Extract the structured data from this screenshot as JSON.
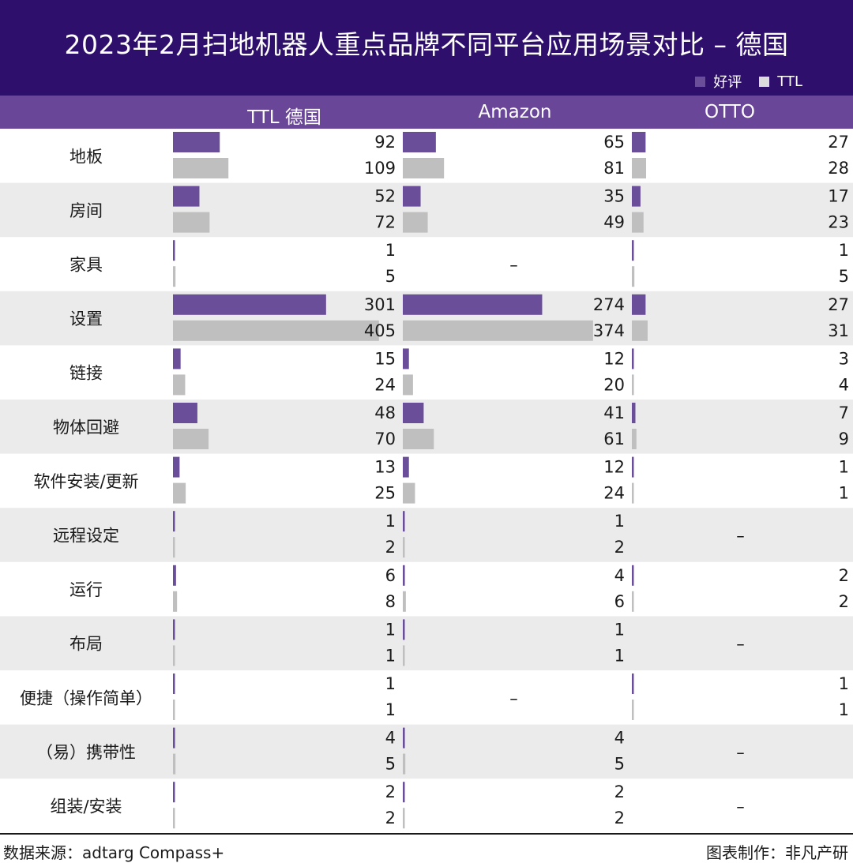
{
  "chart_data": {
    "type": "bar",
    "title": "2023年2月扫地机器人重点品牌不同平台应用场景对比 – 德国",
    "legend": [
      {
        "label": "好评",
        "color": "#6a4e99"
      },
      {
        "label": "TTL",
        "color": "#bfbfbf"
      }
    ],
    "columns": [
      "TTL 德国",
      "Amazon",
      "OTTO"
    ],
    "series_names": [
      "好评",
      "TTL"
    ],
    "categories": [
      "地板",
      "房间",
      "家具",
      "设置",
      "链接",
      "物体回避",
      "软件安装/更新",
      "远程设定",
      "运行",
      "布局",
      "便捷（操作简单）",
      "（易）携带性",
      "组装/安装"
    ],
    "groups": [
      {
        "name": "TTL 德国",
        "good": [
          92,
          52,
          1,
          301,
          15,
          48,
          13,
          1,
          6,
          1,
          1,
          4,
          2
        ],
        "ttl": [
          109,
          72,
          5,
          405,
          24,
          70,
          25,
          2,
          8,
          1,
          1,
          5,
          2
        ]
      },
      {
        "name": "Amazon",
        "good": [
          65,
          35,
          null,
          274,
          12,
          41,
          12,
          1,
          4,
          1,
          null,
          4,
          2
        ],
        "ttl": [
          81,
          49,
          null,
          374,
          20,
          61,
          24,
          2,
          6,
          1,
          null,
          5,
          2
        ]
      },
      {
        "name": "OTTO",
        "good": [
          27,
          17,
          1,
          27,
          3,
          7,
          1,
          null,
          2,
          null,
          1,
          null,
          null
        ],
        "ttl": [
          28,
          23,
          5,
          31,
          4,
          9,
          1,
          null,
          2,
          null,
          1,
          null,
          null
        ]
      }
    ],
    "missing_mark": "–",
    "grid": false
  },
  "source": "数据来源：adtarg Compass+",
  "credit": "图表制作：非凡产研",
  "colors": {
    "header": "#2e0f6b",
    "subheader": "#6a4699",
    "good_bar": "#6a4e99",
    "ttl_bar": "#bfbfbf",
    "row_shade": "#ebebeb"
  }
}
